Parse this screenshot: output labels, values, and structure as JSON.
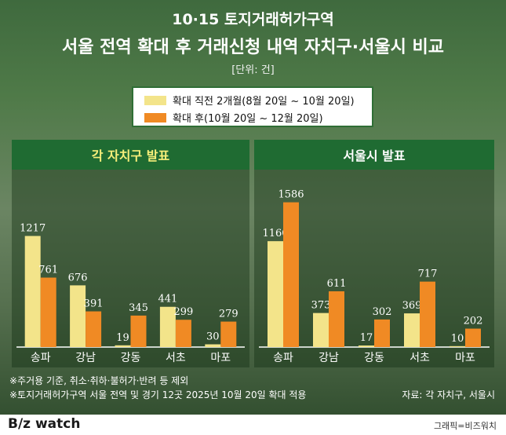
{
  "header": {
    "title_line1": "10·15 토지거래허가구역",
    "title_line2": "서울 전역 확대 후 거래신청 내역 자치구·서울시 비교",
    "unit": "[단위: 건]"
  },
  "legend": {
    "before_label": "확대 직전 2개월(8월 20일 ~ 10월 20일)",
    "after_label": "확대 후(10월 20일 ~ 12월 20일)"
  },
  "colors": {
    "before": "#f3e48a",
    "after": "#f08a24",
    "panel_head": "#1f6b32",
    "left_head_text": "#f7ef7a",
    "right_head_text": "#ffffff"
  },
  "chart_data": [
    {
      "type": "bar",
      "title": "각 자치구 발표",
      "categories": [
        "송파",
        "강남",
        "강동",
        "서초",
        "마포"
      ],
      "series": [
        {
          "name": "확대 직전 2개월(8월 20일 ~ 10월 20일)",
          "values": [
            1217,
            676,
            19,
            441,
            30
          ]
        },
        {
          "name": "확대 후(10월 20일 ~ 12월 20일)",
          "values": [
            761,
            391,
            345,
            299,
            279
          ]
        }
      ],
      "xlabel": "",
      "ylabel": "건",
      "ylim": [
        0,
        1600
      ]
    },
    {
      "type": "bar",
      "title": "서울시 발표",
      "categories": [
        "송파",
        "강남",
        "강동",
        "서초",
        "마포"
      ],
      "series": [
        {
          "name": "확대 직전 2개월(8월 20일 ~ 10월 20일)",
          "values": [
            1160,
            373,
            17,
            369,
            10
          ]
        },
        {
          "name": "확대 후(10월 20일 ~ 12월 20일)",
          "values": [
            1586,
            611,
            302,
            717,
            202
          ]
        }
      ],
      "xlabel": "",
      "ylabel": "건",
      "ylim": [
        0,
        1600
      ]
    }
  ],
  "notes": {
    "line1": "※주거용 기준, 취소·취하·불허가·반려 등 제외",
    "line2": "※토지거래허가구역 서울 전역 및 경기 12곳 2025년 10월 20일 확대 적용"
  },
  "source": "자료: 각 자치구, 서울시",
  "footer": {
    "brand": "B/z watch",
    "credit": "그래픽=비즈워치"
  }
}
